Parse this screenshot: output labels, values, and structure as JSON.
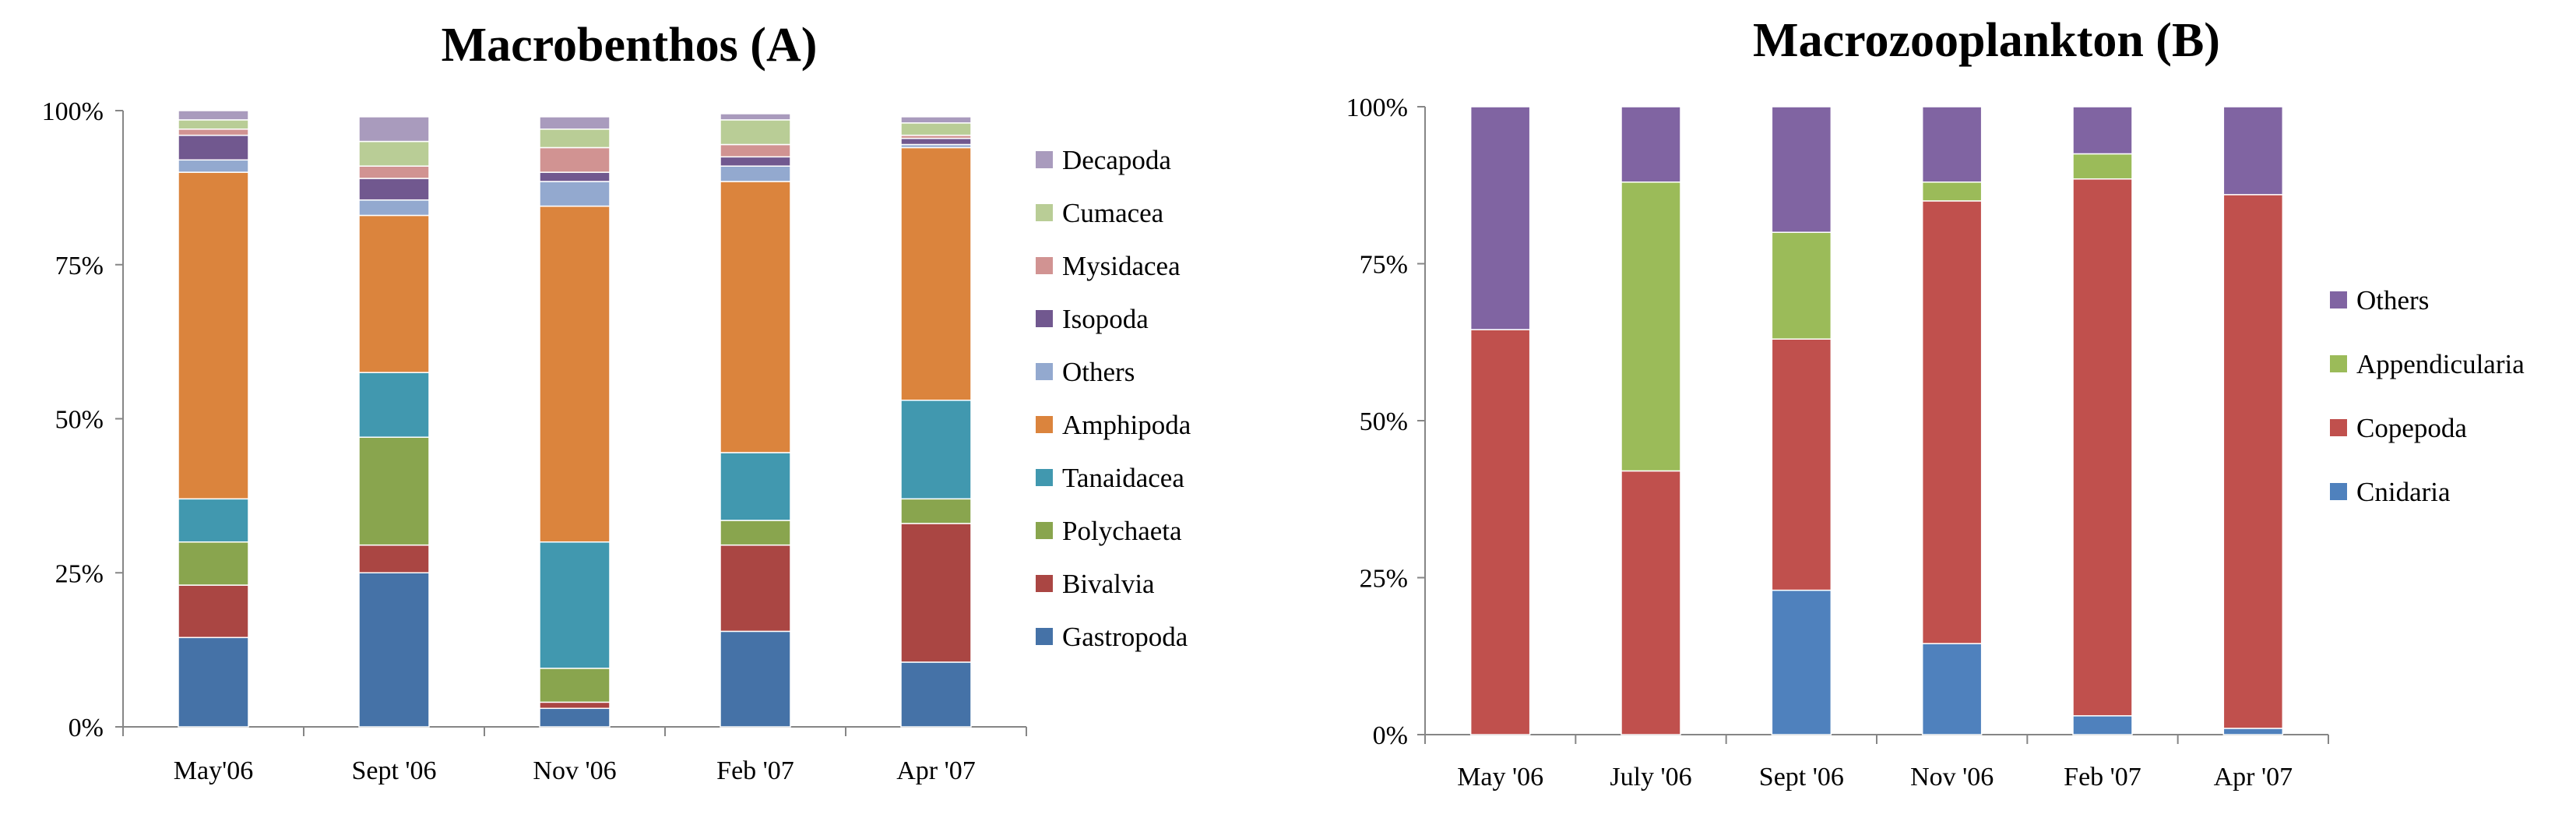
{
  "chart_data": [
    {
      "type": "bar",
      "stacked": true,
      "title": "Macrobenthos (A)",
      "xlabel": "",
      "ylabel": "",
      "yticks": [
        "0%",
        "25%",
        "50%",
        "75%",
        "100%"
      ],
      "ylim": [
        0,
        100
      ],
      "categories": [
        "May'06",
        "Sept '06",
        "Nov '06",
        "Feb '07",
        "Apr '07"
      ],
      "series": [
        {
          "name": "Gastropoda",
          "color": "#4572A7",
          "values": [
            14.5,
            25,
            3,
            15.5,
            10.5
          ]
        },
        {
          "name": "Bivalvia",
          "color": "#AA4643",
          "values": [
            8.5,
            4.5,
            1,
            14,
            22.5
          ]
        },
        {
          "name": "Polychaeta",
          "color": "#89A54E",
          "values": [
            7,
            17.5,
            5.5,
            4,
            4
          ]
        },
        {
          "name": "Tanaidacea",
          "color": "#4198AF",
          "values": [
            7,
            10.5,
            20.5,
            11,
            16
          ]
        },
        {
          "name": "Amphipoda",
          "color": "#DB843D",
          "values": [
            53,
            25.5,
            54.5,
            44,
            41
          ]
        },
        {
          "name": "Others",
          "color": "#93A9CF",
          "values": [
            2,
            2.5,
            4,
            2.5,
            0.5
          ]
        },
        {
          "name": "Isopoda",
          "color": "#71588F",
          "values": [
            4,
            3.5,
            1.5,
            1.5,
            1
          ]
        },
        {
          "name": "Mysidacea",
          "color": "#D19392",
          "values": [
            1,
            2,
            4,
            2,
            0.5
          ]
        },
        {
          "name": "Cumacea",
          "color": "#B9CD96",
          "values": [
            1.5,
            4,
            3,
            4,
            2
          ]
        },
        {
          "name": "Decapoda",
          "color": "#A99BBD",
          "values": [
            1.5,
            4,
            2,
            1,
            1
          ]
        }
      ],
      "legend_position": "right"
    },
    {
      "type": "bar",
      "stacked": true,
      "title": "Macrozooplankton (B)",
      "xlabel": "",
      "ylabel": "",
      "yticks": [
        "0%",
        "25%",
        "50%",
        "75%",
        "100%"
      ],
      "ylim": [
        0,
        100
      ],
      "categories": [
        "May '06",
        "July '06",
        "Sept '06",
        "Nov '06",
        "Feb '07",
        "Apr '07"
      ],
      "series": [
        {
          "name": "Cnidaria",
          "color": "#4F81BD",
          "values": [
            0,
            0,
            23,
            14.5,
            3,
            1
          ]
        },
        {
          "name": "Copepoda",
          "color": "#C0504D",
          "values": [
            64.5,
            42,
            40,
            70.5,
            85.5,
            85
          ]
        },
        {
          "name": "Appendicularia",
          "color": "#9BBB59",
          "values": [
            0,
            46,
            17,
            3,
            4,
            0
          ]
        },
        {
          "name": "Others",
          "color": "#8064A2",
          "values": [
            35.5,
            12,
            20,
            12,
            7.5,
            14
          ]
        }
      ],
      "legend_position": "right"
    }
  ]
}
